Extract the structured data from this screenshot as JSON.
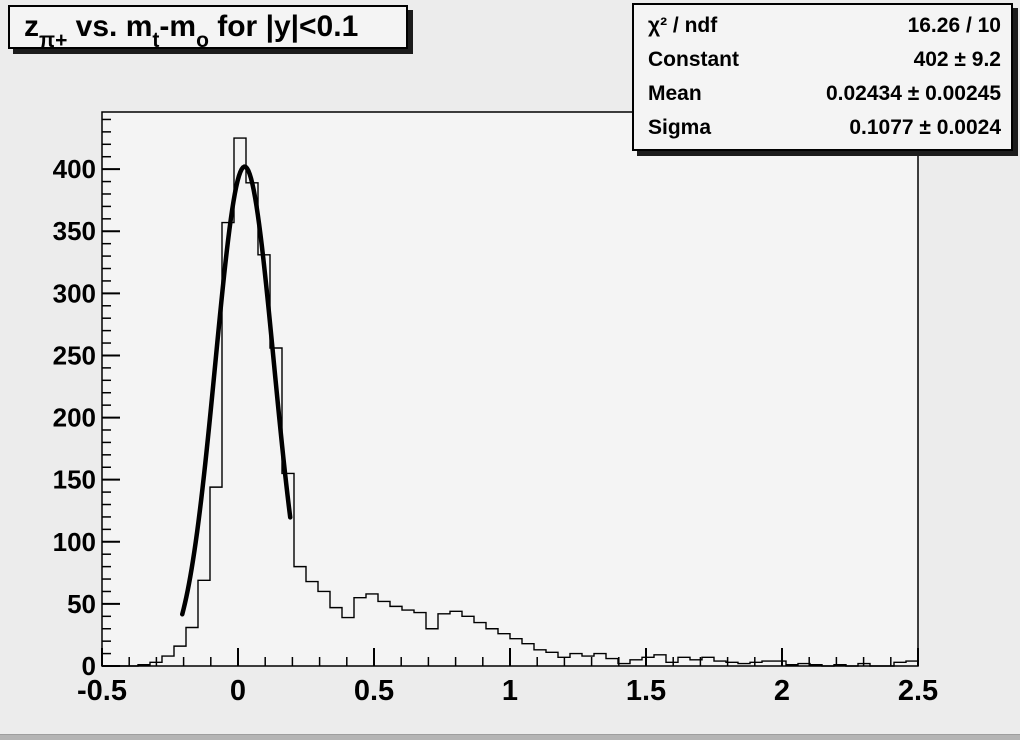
{
  "colors": {
    "canvas_bg": "#ececec",
    "frame_bg": "#f4f4f4",
    "line": "#000000",
    "pave_bg": "#f4f4f4",
    "shadow": "#1c1c1c"
  },
  "title": {
    "segments": [
      {
        "text": "z"
      },
      {
        "text": "π+",
        "sub": true
      },
      {
        "text": " vs. m"
      },
      {
        "text": "t",
        "sub": true
      },
      {
        "text": "-m"
      },
      {
        "text": "o",
        "sub": true
      },
      {
        "text": " for |y|<0.1"
      }
    ]
  },
  "stats": {
    "rows": [
      {
        "label": "χ² / ndf",
        "value": "16.26 / 10"
      },
      {
        "label": "Constant",
        "value": "402 ± 9.2"
      },
      {
        "label": "Mean",
        "value": "0.02434 ± 0.00245"
      },
      {
        "label": "Sigma",
        "value": "0.1077 ± 0.0024"
      }
    ]
  },
  "chart_data": {
    "type": "bar",
    "subtype": "step-histogram-with-gaussian-fit",
    "title": "z_pi+ vs. m_t-m_o for |y|<0.1",
    "xlabel": "",
    "ylabel": "",
    "xlim": [
      -0.5,
      2.5
    ],
    "ylim": [
      0,
      446
    ],
    "grid": false,
    "x_major_ticks": [
      -0.5,
      0,
      0.5,
      1,
      1.5,
      2,
      2.5
    ],
    "x_tick_labels": [
      "-0.5",
      "0",
      "0.5",
      "1",
      "1.5",
      "2",
      "2.5"
    ],
    "x_minor_step": 0.1,
    "y_major_ticks": [
      0,
      50,
      100,
      150,
      200,
      250,
      300,
      350,
      400
    ],
    "y_tick_labels": [
      "0",
      "50",
      "100",
      "150",
      "200",
      "250",
      "300",
      "350",
      "400"
    ],
    "y_minor_step": 10,
    "bins": {
      "start": -0.5,
      "width": 0.0441176,
      "counts": [
        0,
        0,
        0,
        1,
        3,
        8,
        16,
        31,
        69,
        144,
        357,
        425,
        389,
        331,
        256,
        155,
        80,
        68,
        60,
        47,
        39,
        55,
        58,
        52,
        48,
        45,
        43,
        30,
        42,
        44,
        40,
        35,
        30,
        26,
        22,
        18,
        13,
        11,
        7,
        10,
        8,
        10,
        6,
        2,
        5,
        7,
        9,
        3,
        7,
        5,
        7,
        4,
        3,
        2,
        3,
        4,
        4,
        1,
        2,
        1,
        0,
        1,
        0,
        2,
        0,
        0,
        3,
        4
      ]
    },
    "fit": {
      "model": "gaussian",
      "constant": 402,
      "mean": 0.02434,
      "sigma": 0.1077,
      "chi2": 16.26,
      "ndf": 10,
      "draw_range": [
        -0.205,
        0.192
      ]
    }
  }
}
